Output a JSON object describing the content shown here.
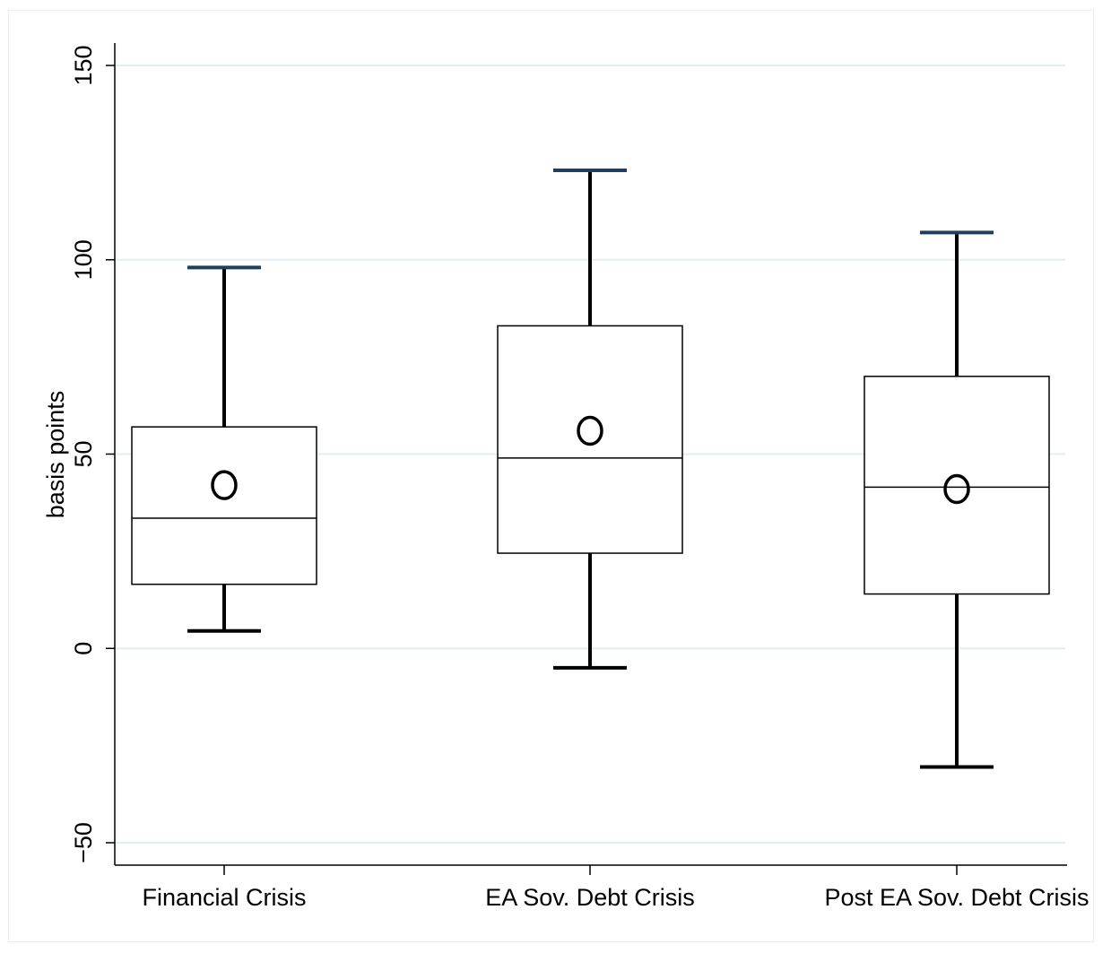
{
  "chart_data": {
    "type": "box",
    "title": "",
    "xlabel": "",
    "ylabel": "basis points",
    "ylim": [
      -55,
      155
    ],
    "yticks": [
      -50,
      0,
      50,
      100,
      150
    ],
    "ytick_labels": [
      "−50",
      "0",
      "50",
      "100",
      "150"
    ],
    "grid": true,
    "categories": [
      "Financial Crisis",
      "EA Sov. Debt Crisis",
      "Post EA Sov. Debt Crisis"
    ],
    "boxes": [
      {
        "whisker_low": 4.5,
        "q1": 16.5,
        "median": 33.5,
        "q3": 57,
        "whisker_high": 98,
        "mean": 42
      },
      {
        "whisker_low": -5,
        "q1": 24.5,
        "median": 49,
        "q3": 83,
        "whisker_high": 123,
        "mean": 56
      },
      {
        "whisker_low": -30.5,
        "q1": 14,
        "median": 41.5,
        "q3": 70,
        "whisker_high": 107,
        "mean": 41
      }
    ],
    "colors": {
      "grid": "#e3eef0",
      "upper_cap": "#1f3f5f",
      "box_stroke": "#000000",
      "whisker": "#000000"
    }
  }
}
